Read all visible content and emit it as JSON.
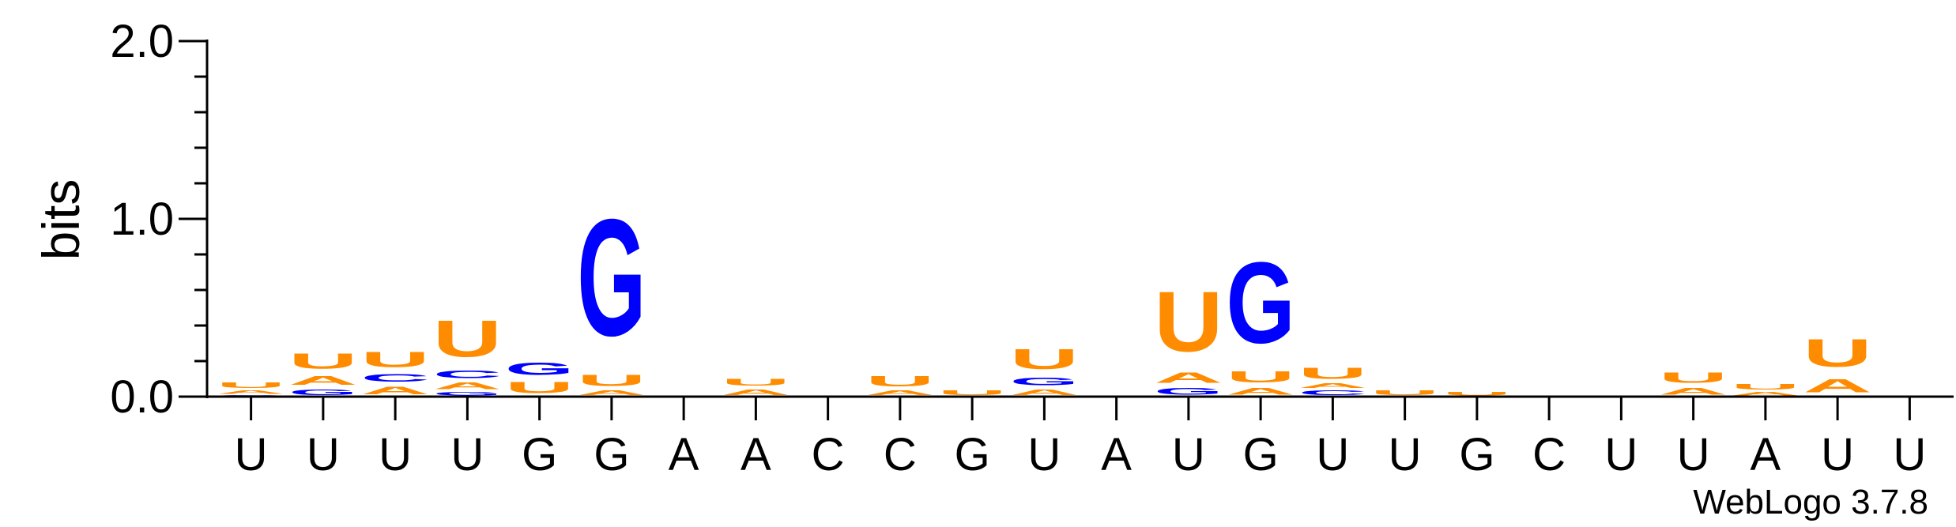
{
  "chart_data": {
    "type": "sequence-logo",
    "ylabel": "bits",
    "ylim": [
      0,
      2.0
    ],
    "y_ticks": [
      "0.0",
      "1.0",
      "2.0"
    ],
    "x_tick_labels": [
      "U",
      "U",
      "U",
      "U",
      "G",
      "G",
      "A",
      "A",
      "C",
      "C",
      "G",
      "U",
      "A",
      "U",
      "G",
      "U",
      "U",
      "G",
      "C",
      "U",
      "U",
      "A",
      "U",
      "U"
    ],
    "footer": "WebLogo 3.7.8",
    "colors": {
      "A": "#ff8c00",
      "U": "#ff8c00",
      "G": "#0000ff",
      "C": "#0000ff"
    },
    "positions": [
      [
        [
          "G",
          0.01
        ],
        [
          "A",
          0.03
        ],
        [
          "U",
          0.05
        ]
      ],
      [
        [
          "G",
          0.05
        ],
        [
          "A",
          0.08
        ],
        [
          "U",
          0.14
        ]
      ],
      [
        [
          "A",
          0.07
        ],
        [
          "C",
          0.07
        ],
        [
          "U",
          0.14
        ]
      ],
      [
        [
          "G",
          0.03
        ],
        [
          "A",
          0.06
        ],
        [
          "C",
          0.07
        ],
        [
          "U",
          0.33
        ]
      ],
      [
        [
          "U",
          0.1
        ],
        [
          "G",
          0.11
        ]
      ],
      [
        [
          "A",
          0.04
        ],
        [
          "U",
          0.1
        ],
        [
          "G",
          1.05
        ]
      ],
      [],
      [
        [
          "A",
          0.05
        ],
        [
          "U",
          0.06
        ]
      ],
      [],
      [
        [
          "A",
          0.04
        ],
        [
          "U",
          0.09
        ]
      ],
      [
        [
          "U",
          0.04
        ]
      ],
      [
        [
          "A",
          0.05
        ],
        [
          "G",
          0.07
        ],
        [
          "U",
          0.18
        ]
      ],
      [],
      [
        [
          "G",
          0.06
        ],
        [
          "A",
          0.09
        ],
        [
          "U",
          0.54
        ]
      ],
      [
        [
          "A",
          0.06
        ],
        [
          "U",
          0.1
        ],
        [
          "G",
          0.73
        ]
      ],
      [
        [
          "C",
          0.04
        ],
        [
          "A",
          0.04
        ],
        [
          "U",
          0.1
        ]
      ],
      [
        [
          "U",
          0.04
        ]
      ],
      [
        [
          "U",
          0.03
        ]
      ],
      [],
      [],
      [
        [
          "A",
          0.06
        ],
        [
          "U",
          0.09
        ]
      ],
      [
        [
          "A",
          0.03
        ],
        [
          "U",
          0.05
        ]
      ],
      [
        [
          "A",
          0.12
        ],
        [
          "U",
          0.25
        ]
      ],
      []
    ]
  }
}
